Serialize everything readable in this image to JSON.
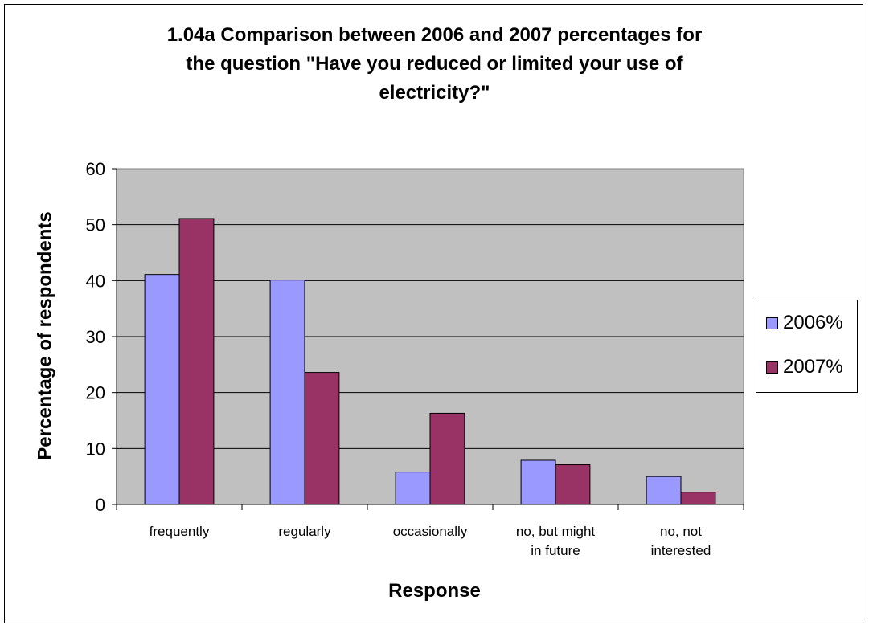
{
  "chart_data": {
    "type": "bar",
    "title": "1.04a Comparison between 2006 and 2007 percentages for\nthe question \"Have you  reduced or limited your use of\nelectricity?\"",
    "xlabel": "Response",
    "ylabel": "Percentage of respondents",
    "categories": [
      "frequently",
      "regularly",
      "occasionally",
      "no, but might\nin future",
      "no, not\ninterested"
    ],
    "series": [
      {
        "name": "2006%",
        "values": [
          41.1,
          40.1,
          5.8,
          7.9,
          5.0
        ],
        "color": "#9999ff"
      },
      {
        "name": "2007%",
        "values": [
          51.1,
          23.6,
          16.3,
          7.1,
          2.2
        ],
        "color": "#993366"
      }
    ],
    "ylim": [
      0,
      60
    ],
    "yticks": [
      0,
      10,
      20,
      30,
      40,
      50,
      60
    ],
    "plot_background": "#c0c0c0",
    "grid": true,
    "legend_position": "right"
  }
}
